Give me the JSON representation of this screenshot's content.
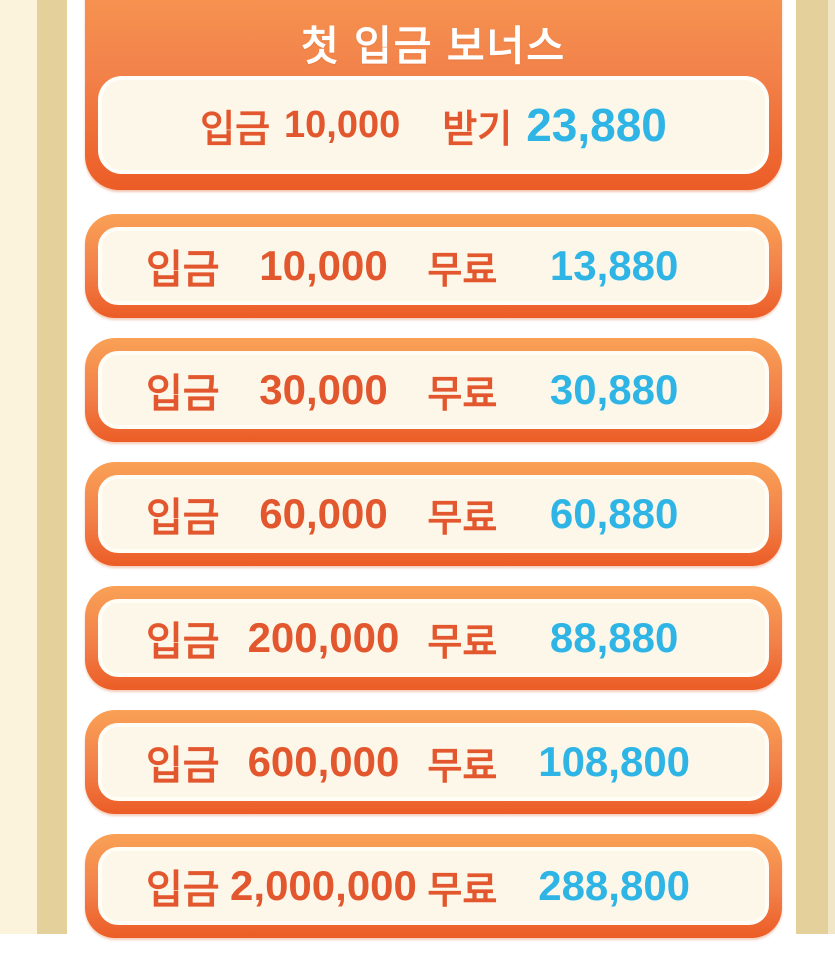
{
  "theme": {
    "page_cream": "#FBF3DC",
    "tan_strip": "#E4D09B",
    "content_background": "#FFFFFF",
    "card_gradient_top": "#F9A156",
    "card_gradient_bottom": "#EC5C26",
    "card_inner_cream": "#FDF7E9",
    "deposit_text_orange": "#E2572E",
    "bonus_text_cyan": "#2FB5E5",
    "title_text_white": "#FFFFFF"
  },
  "header": {
    "title": "첫 입금 보너스",
    "claim_row": {
      "deposit_label": "입금",
      "deposit_amount": "10,000",
      "claim_label": "받기",
      "bonus_amount": "23,880"
    }
  },
  "tier_labels": {
    "deposit": "입금",
    "free": "무료"
  },
  "tiers": [
    {
      "deposit_label": "입금",
      "deposit_amount": "10,000",
      "free_label": "무료",
      "bonus_amount": "13,880"
    },
    {
      "deposit_label": "입금",
      "deposit_amount": "30,000",
      "free_label": "무료",
      "bonus_amount": "30,880"
    },
    {
      "deposit_label": "입금",
      "deposit_amount": "60,000",
      "free_label": "무료",
      "bonus_amount": "60,880"
    },
    {
      "deposit_label": "입금",
      "deposit_amount": "200,000",
      "free_label": "무료",
      "bonus_amount": "88,880"
    },
    {
      "deposit_label": "입금",
      "deposit_amount": "600,000",
      "free_label": "무료",
      "bonus_amount": "108,800"
    },
    {
      "deposit_label": "입금",
      "deposit_amount": "2,000,000",
      "free_label": "무료",
      "bonus_amount": "288,800"
    }
  ]
}
